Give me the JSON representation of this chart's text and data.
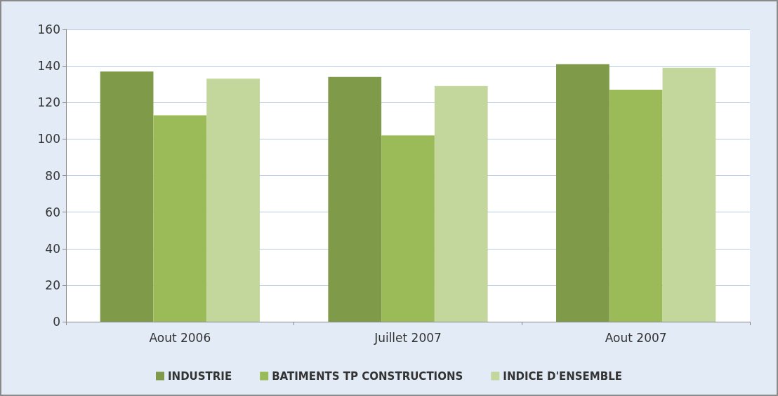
{
  "chart_data": {
    "type": "bar",
    "categories": [
      "Aout 2006",
      "Juillet 2007",
      "Aout 2007"
    ],
    "series": [
      {
        "name": "INDUSTRIE",
        "color": "#7f9a48",
        "values": [
          137,
          134,
          141
        ]
      },
      {
        "name": "BATIMENTS TP CONSTRUCTIONS",
        "color": "#9bbb59",
        "values": [
          113,
          102,
          127
        ]
      },
      {
        "name": "INDICE D'ENSEMBLE",
        "color": "#c3d69b",
        "values": [
          133,
          129,
          139
        ]
      }
    ],
    "ylim": [
      0,
      160
    ],
    "yticks": [
      0,
      20,
      40,
      60,
      80,
      100,
      120,
      140,
      160
    ],
    "grid": "y",
    "legend": "bottom"
  }
}
